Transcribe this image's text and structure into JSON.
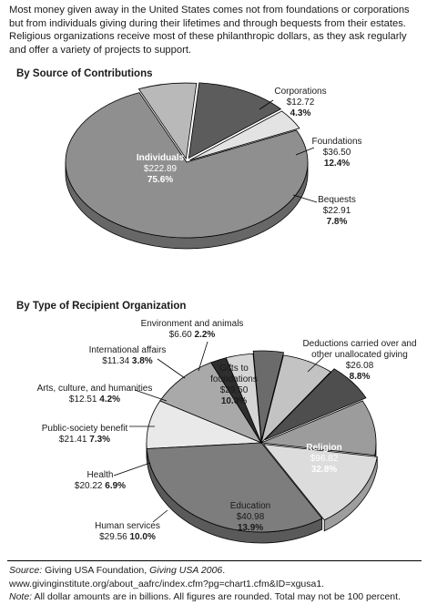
{
  "intro": "Most money given away in the United States comes not from foundations or corporations but from individuals giving during their lifetimes and through bequests from their estates. Religious organizations receive most of these philanthropic dollars, as they ask regularly and offer a variety of projects to support.",
  "footer": {
    "source_label": "Source:",
    "source_text_1": " Giving USA Foundation, ",
    "source_title": "Giving USA 2006",
    "source_text_2": ". www.givinginstitute.org/about_aafrc/index.cfm?pg=chart1.cfm&ID=xgusa1.",
    "note_label": "Note:",
    "note_text": " All dollar amounts are in billions. All figures are rounded. Total may not be 100 percent."
  },
  "chart_data": [
    {
      "type": "pie",
      "title": "By Source of Contributions",
      "unit": "billions of dollars",
      "slices": [
        {
          "name": "Individuals",
          "amount": "$222.89",
          "percent": "75.6%",
          "value": 222.89,
          "pct": 75.6,
          "color": "#8f8f8f",
          "label_inside": true
        },
        {
          "name": "Corporations",
          "amount": "$12.72",
          "percent": "4.3%",
          "value": 12.72,
          "pct": 4.3,
          "color": "#e3e3e3"
        },
        {
          "name": "Foundations",
          "amount": "$36.50",
          "percent": "12.4%",
          "value": 36.5,
          "pct": 12.4,
          "color": "#5c5c5c"
        },
        {
          "name": "Bequests",
          "amount": "$22.91",
          "percent": "7.8%",
          "value": 22.91,
          "pct": 7.8,
          "color": "#b9b9b9"
        }
      ]
    },
    {
      "type": "pie",
      "title": "By Type of Recipient Organization",
      "unit": "billions of dollars",
      "slices": [
        {
          "name": "Gifts to foundations",
          "name_lines": [
            "Gifts to",
            "foundations"
          ],
          "amount": "$29.50",
          "percent": "10.0%",
          "value": 29.5,
          "pct": 10.0,
          "color": "#a9a9a9",
          "label_inside": true
        },
        {
          "name": "Deductions carried over and other unallocated giving",
          "name_lines": [
            "Deductions carried over and",
            "other unallocated giving"
          ],
          "amount": "$26.08",
          "percent": "8.8%",
          "value": 26.08,
          "pct": 8.8,
          "color": "#e9e9e9"
        },
        {
          "name": "Religion",
          "amount": "$96.82",
          "percent": "32.8%",
          "value": 96.82,
          "pct": 32.8,
          "color": "#7d7d7d",
          "label_inside": true
        },
        {
          "name": "Education",
          "amount": "$40.98",
          "percent": "13.9%",
          "value": 40.98,
          "pct": 13.9,
          "color": "#dcdcdc",
          "label_inside": true
        },
        {
          "name": "Human services",
          "amount": "$29.56",
          "percent": "10.0%",
          "value": 29.56,
          "pct": 10.0,
          "color": "#9c9c9c"
        },
        {
          "name": "Health",
          "amount": "$20.22",
          "percent": "6.9%",
          "value": 20.22,
          "pct": 6.9,
          "color": "#4e4e4e"
        },
        {
          "name": "Public-society benefit",
          "amount": "$21.41",
          "percent": "7.3%",
          "value": 21.41,
          "pct": 7.3,
          "color": "#c3c3c3"
        },
        {
          "name": "Arts, culture, and humanities",
          "amount": "$12.51",
          "percent": "4.2%",
          "value": 12.51,
          "pct": 4.2,
          "color": "#6b6b6b"
        },
        {
          "name": "International affairs",
          "amount": "$11.34",
          "percent": "3.8%",
          "value": 11.34,
          "pct": 3.8,
          "color": "#d5d5d5"
        },
        {
          "name": "Environment and animals",
          "amount": "$6.60",
          "percent": "2.2%",
          "value": 6.6,
          "pct": 2.2,
          "color": "#2e2e2e"
        }
      ]
    }
  ]
}
